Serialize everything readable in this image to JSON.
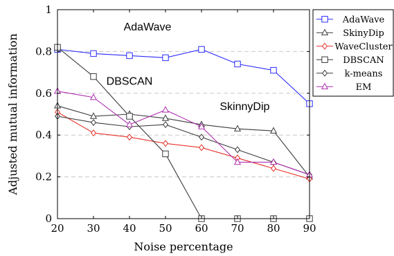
{
  "chart_data": {
    "type": "line",
    "title": "",
    "xlabel": "Noise percentage",
    "ylabel": "Adjusted mutual information",
    "x": [
      20,
      30,
      40,
      50,
      60,
      70,
      80,
      90
    ],
    "xlim": [
      20,
      90
    ],
    "ylim": [
      0,
      1
    ],
    "x_ticks": [
      "20",
      "30",
      "40",
      "50",
      "60",
      "70",
      "80",
      "90"
    ],
    "y_ticks": [
      "0",
      "0.2",
      "0.4",
      "0.6",
      "0.8",
      "1"
    ],
    "y_tick_values": [
      0,
      0.2,
      0.4,
      0.6,
      0.8,
      1
    ],
    "grid": "horizontal dashed",
    "legend_position": "outside-right",
    "series": [
      {
        "name": "AdaWave",
        "color": "#2b2bff",
        "marker": "square",
        "values": [
          0.81,
          0.79,
          0.78,
          0.77,
          0.81,
          0.74,
          0.71,
          0.55
        ]
      },
      {
        "name": "SkinyDip",
        "color": "#3a3a3a",
        "marker": "triangle",
        "values": [
          0.54,
          0.49,
          0.5,
          0.48,
          0.45,
          0.43,
          0.42,
          0.2
        ]
      },
      {
        "name": "WaveCluster",
        "color": "#e8322a",
        "marker": "diamond",
        "values": [
          0.51,
          0.41,
          0.39,
          0.36,
          0.34,
          0.29,
          0.24,
          0.19
        ]
      },
      {
        "name": "DBSCAN",
        "color": "#3a3a3a",
        "marker": "square",
        "values": [
          0.82,
          0.68,
          0.49,
          0.31,
          0.0,
          0.0,
          0.0,
          0.0
        ]
      },
      {
        "name": "k-means",
        "color": "#3a3a3a",
        "marker": "diamond",
        "values": [
          0.49,
          0.46,
          0.44,
          0.45,
          0.39,
          0.33,
          0.27,
          0.21
        ]
      },
      {
        "name": "EM",
        "color": "#b030b0",
        "marker": "triangle",
        "values": [
          0.61,
          0.58,
          0.45,
          0.52,
          0.44,
          0.27,
          0.27,
          0.21
        ]
      }
    ],
    "annotations": [
      {
        "text": "AdaWave",
        "x": 45,
        "y": 0.9
      },
      {
        "text": "DBSCAN",
        "x": 40,
        "y": 0.64
      },
      {
        "text": "SkinnyDip",
        "x": 72,
        "y": 0.52
      }
    ]
  }
}
